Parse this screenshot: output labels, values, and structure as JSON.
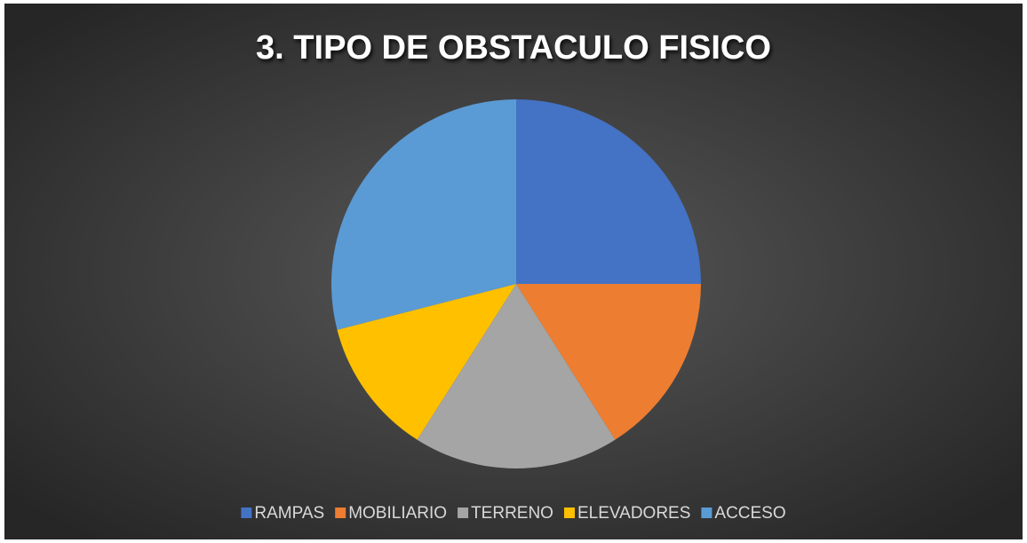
{
  "chart_data": {
    "type": "pie",
    "title": "3. TIPO DE OBSTACULO FISICO",
    "categories": [
      "RAMPAS",
      "MOBILIARIO",
      "TERRENO",
      "ELEVADORES",
      "ACCESO"
    ],
    "values": [
      25,
      16,
      18,
      12,
      29
    ],
    "colors": [
      "#4472c4",
      "#ed7d31",
      "#a5a5a5",
      "#ffc000",
      "#5b9bd5"
    ],
    "legend": "bottom"
  }
}
